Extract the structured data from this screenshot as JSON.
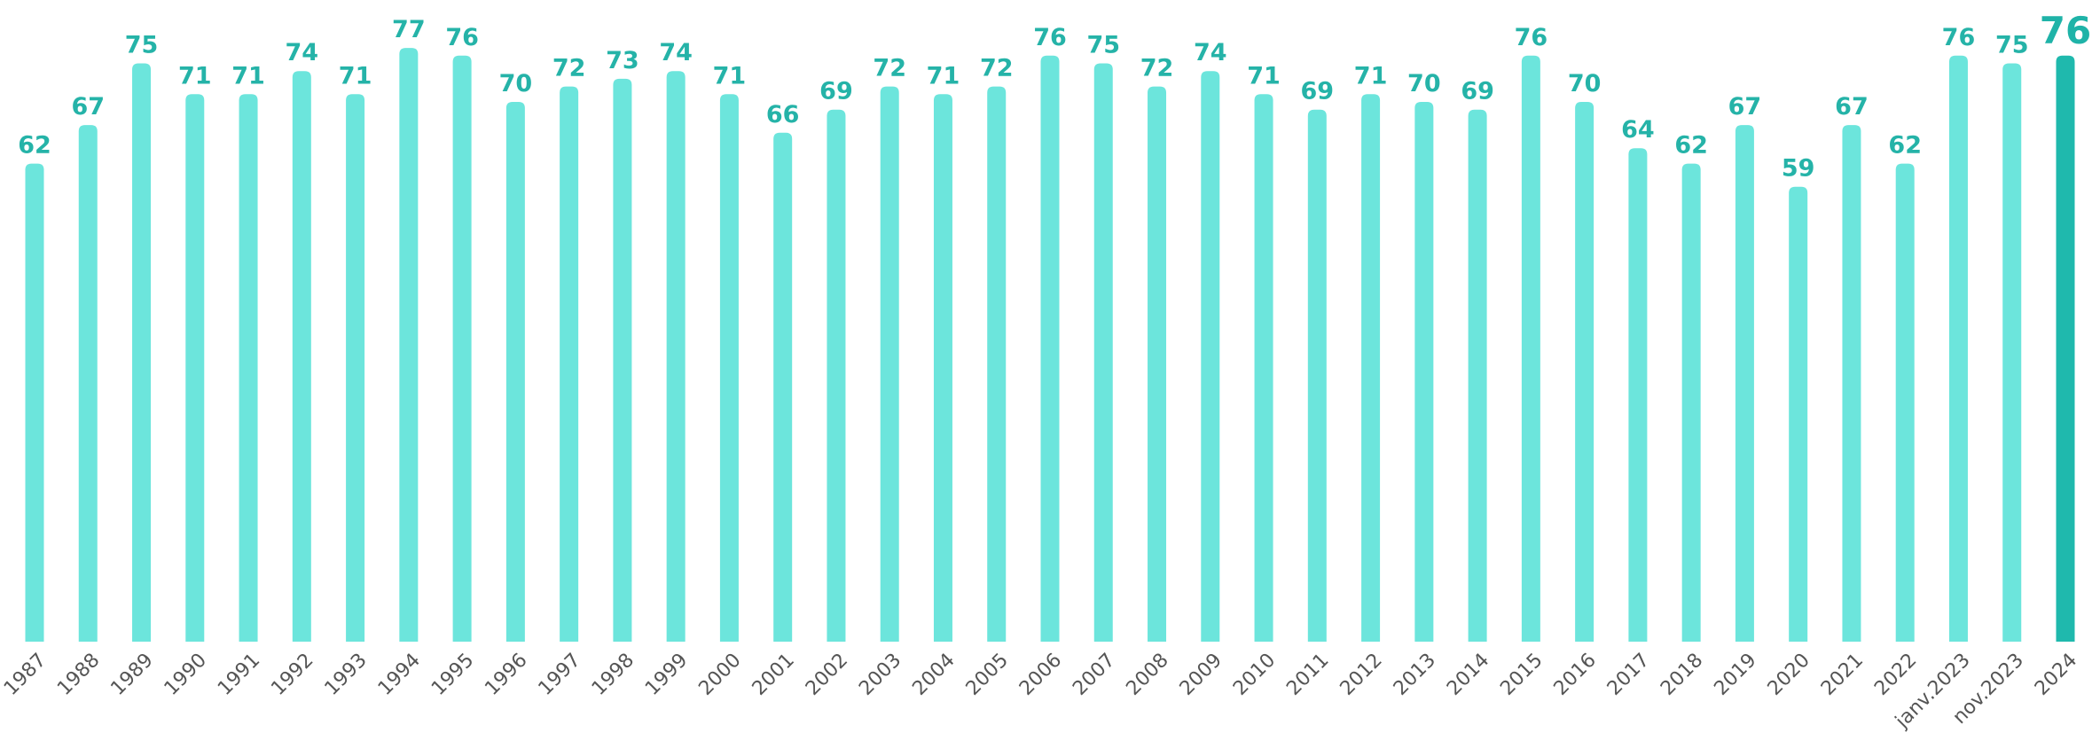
{
  "chart_data": {
    "type": "bar",
    "categories": [
      "1987",
      "1988",
      "1989",
      "1990",
      "1991",
      "1992",
      "1993",
      "1994",
      "1995",
      "1996",
      "1997",
      "1998",
      "1999",
      "2000",
      "2001",
      "2002",
      "2003",
      "2004",
      "2005",
      "2006",
      "2007",
      "2008",
      "2009",
      "2010",
      "2011",
      "2012",
      "2013",
      "2014",
      "2015",
      "2016",
      "2017",
      "2018",
      "2019",
      "2020",
      "2021",
      "2022",
      "janv.2023",
      "nov.2023",
      "2024"
    ],
    "values": [
      62,
      67,
      75,
      71,
      71,
      74,
      71,
      77,
      76,
      70,
      72,
      73,
      74,
      71,
      66,
      69,
      72,
      71,
      72,
      76,
      75,
      72,
      74,
      71,
      69,
      71,
      70,
      69,
      76,
      70,
      64,
      62,
      67,
      59,
      67,
      62,
      76,
      75,
      76
    ],
    "colors": [
      "#6ce5dc",
      "#6ce5dc",
      "#6ce5dc",
      "#6ce5dc",
      "#6ce5dc",
      "#6ce5dc",
      "#6ce5dc",
      "#6ce5dc",
      "#6ce5dc",
      "#6ce5dc",
      "#6ce5dc",
      "#6ce5dc",
      "#6ce5dc",
      "#6ce5dc",
      "#6ce5dc",
      "#6ce5dc",
      "#6ce5dc",
      "#6ce5dc",
      "#6ce5dc",
      "#6ce5dc",
      "#6ce5dc",
      "#6ce5dc",
      "#6ce5dc",
      "#6ce5dc",
      "#6ce5dc",
      "#6ce5dc",
      "#6ce5dc",
      "#6ce5dc",
      "#6ce5dc",
      "#6ce5dc",
      "#6ce5dc",
      "#6ce5dc",
      "#6ce5dc",
      "#6ce5dc",
      "#6ce5dc",
      "#6ce5dc",
      "#6ce5dc",
      "#6ce5dc",
      "#1fb9ad"
    ],
    "ylim": [
      0,
      80
    ]
  }
}
